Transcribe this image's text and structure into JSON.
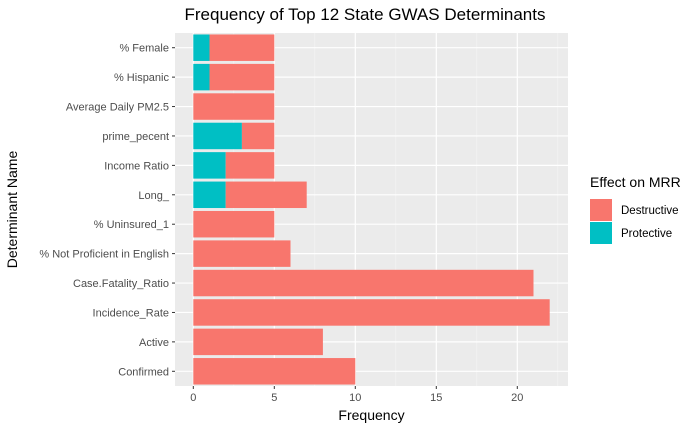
{
  "chart_data": {
    "type": "bar",
    "orientation": "horizontal",
    "stacked": true,
    "title": "Frequency of Top 12 State GWAS Determinants",
    "xlabel": "Frequency",
    "ylabel": "Determinant Name",
    "xlim": [
      0,
      23
    ],
    "xticks": [
      "0",
      "5",
      "10",
      "15",
      "20"
    ],
    "grid": true,
    "legend": {
      "title": "Effect on MRR",
      "position": "right"
    },
    "categories": [
      "% Female",
      "% Hispanic",
      "Average Daily PM2.5",
      "prime_pecent",
      "Income Ratio",
      "Long_",
      "% Uninsured_1",
      "% Not Proficient in English",
      "Case.Fatality_Ratio",
      "Incidence_Rate",
      "Active",
      "Confirmed"
    ],
    "series": [
      {
        "name": "Protective",
        "color": "#00BFC4",
        "values": [
          1,
          1,
          0,
          3,
          2,
          2,
          0,
          0,
          0,
          0,
          0,
          0
        ]
      },
      {
        "name": "Destructive",
        "color": "#F8766D",
        "values": [
          4,
          4,
          5,
          2,
          3,
          5,
          5,
          6,
          21,
          22,
          8,
          10
        ]
      }
    ],
    "legend_order": [
      "Destructive",
      "Protective"
    ]
  }
}
